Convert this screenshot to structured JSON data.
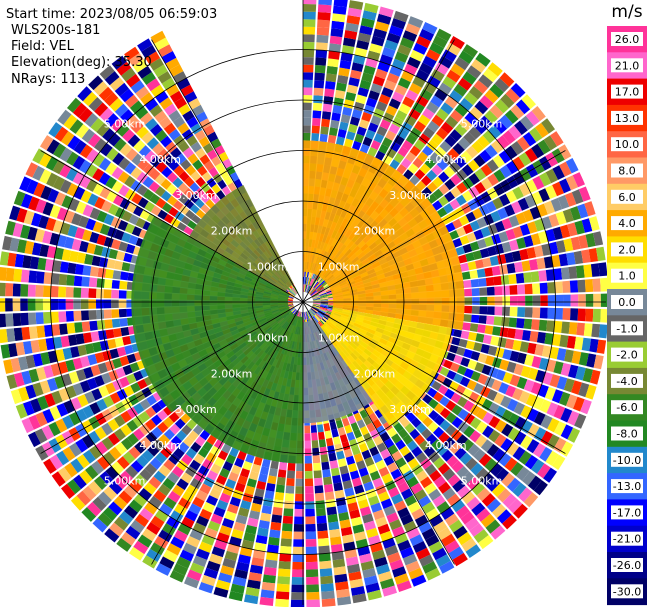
{
  "chart_data": {
    "type": "heatmap",
    "subtype": "radar-ppi",
    "start_time_label": "Start time: 2023/08/05 06:59:03",
    "instrument_label": "WLS200s-181",
    "field_label": "Field: VEL",
    "elevation_label": "Elevation(deg): 35.30",
    "nrays_label": "NRays: 113",
    "ring_labels": [
      "1.00km",
      "2.00km",
      "3.00km",
      "4.00km",
      "5.00km"
    ],
    "ring_ranges_km": [
      1,
      2,
      3,
      4,
      5
    ],
    "max_range_km": 6,
    "gap_azimuth_deg": [
      333,
      360
    ],
    "colorbar": {
      "unit": "m/s",
      "ticks": [
        "26.0",
        "21.0",
        "17.0",
        "13.0",
        "10.0",
        "8.0",
        "6.0",
        "4.0",
        "2.0",
        "1.0",
        "0.0",
        "-1.0",
        "-2.0",
        "-4.0",
        "-6.0",
        "-8.0",
        "-10.0",
        "-13.0",
        "-17.0",
        "-21.0",
        "-26.0",
        "-30.0"
      ],
      "colors": [
        "#ff3399",
        "#ff66cc",
        "#ee0000",
        "#ff3300",
        "#ff6644",
        "#ff9966",
        "#ffcc66",
        "#ffaa00",
        "#ffdd00",
        "#ffff44",
        "#778899",
        "#666666",
        "#99cc33",
        "#778833",
        "#338822",
        "#228822",
        "#2288cc",
        "#3366ff",
        "#0000ff",
        "#0000cc",
        "#000088",
        "#000066"
      ]
    },
    "sectors": [
      {
        "az_from": 0,
        "az_to": 100,
        "inner_range_km": 0.6,
        "outer_range_km": 3.2,
        "value": 4.0
      },
      {
        "az_from": 100,
        "az_to": 145,
        "inner_range_km": 0.6,
        "outer_range_km": 3.0,
        "value": 2.0
      },
      {
        "az_from": 145,
        "az_to": 180,
        "inner_range_km": 0.4,
        "outer_range_km": 2.4,
        "value": 0.0
      },
      {
        "az_from": 180,
        "az_to": 230,
        "inner_range_km": 0.3,
        "outer_range_km": 3.2,
        "value": -6.0
      },
      {
        "az_from": 230,
        "az_to": 300,
        "inner_range_km": 0.3,
        "outer_range_km": 3.4,
        "value": -6.0
      },
      {
        "az_from": 300,
        "az_to": 333,
        "inner_range_km": 0.4,
        "outer_range_km": 2.6,
        "value": -4.0
      }
    ]
  }
}
